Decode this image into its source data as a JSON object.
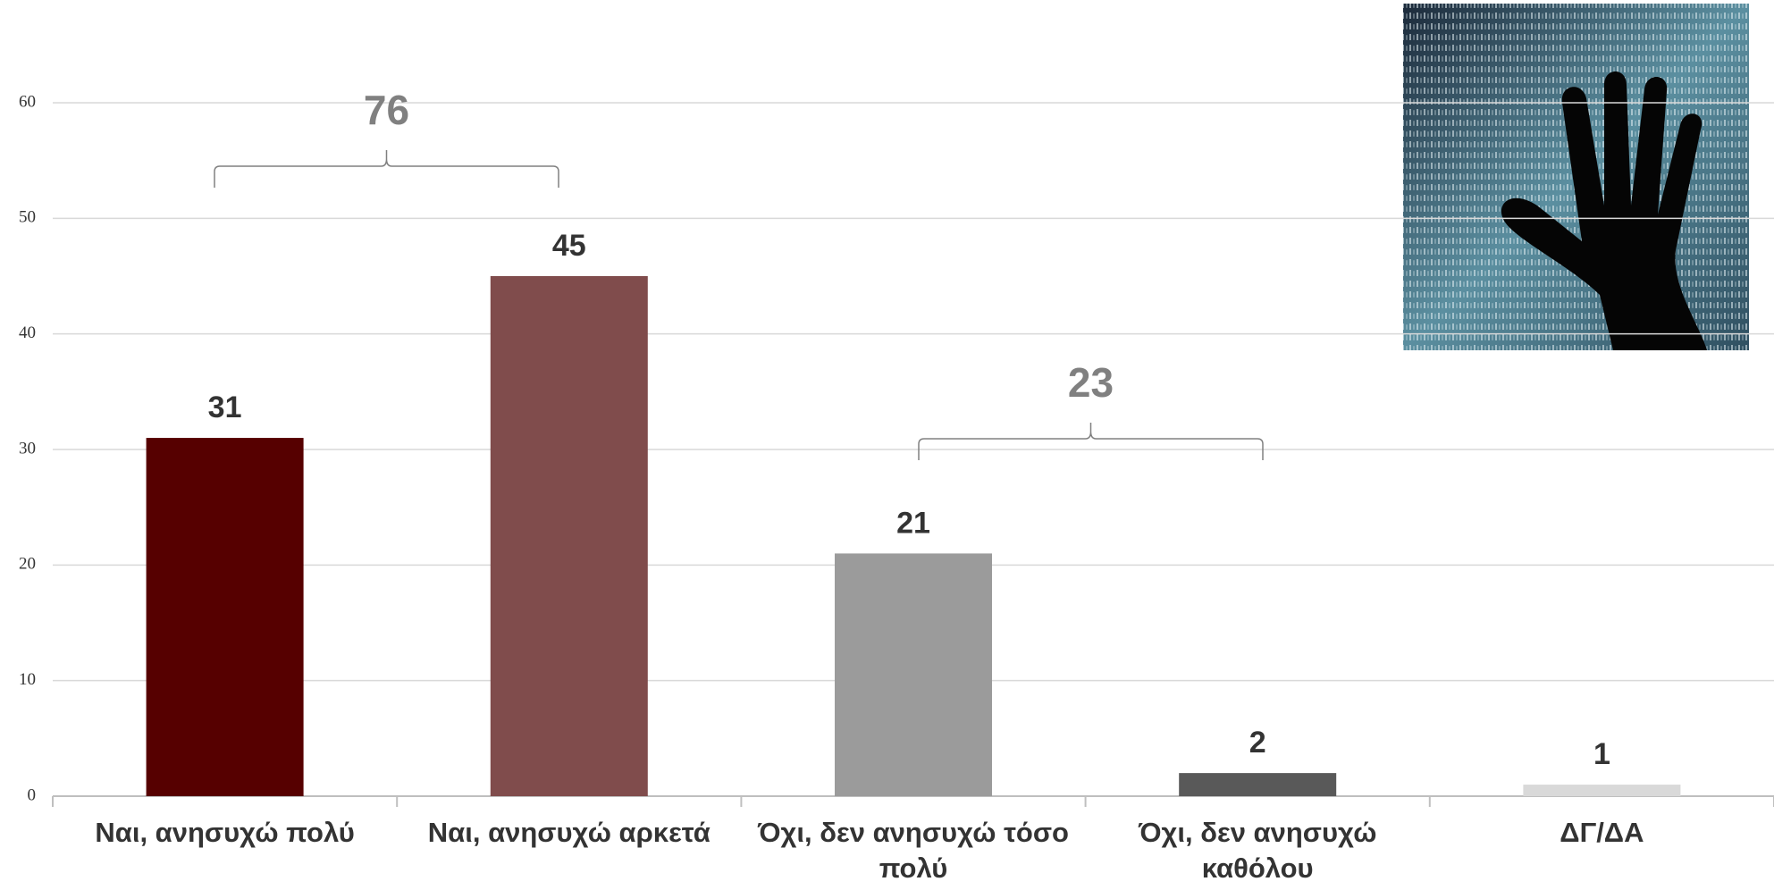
{
  "chart_data": {
    "type": "bar",
    "categories": [
      "Ναι, ανησυχώ πολύ",
      "Ναι, ανησυχώ αρκετά",
      "Όχι, δεν ανησυχώ τόσο πολύ",
      "Όχι, δεν ανησυχώ καθόλου",
      "ΔΓ/ΔΑ"
    ],
    "values": [
      31,
      45,
      21,
      2,
      1
    ],
    "colors": [
      "#560000",
      "#804c4c",
      "#9b9b9b",
      "#595959",
      "#d9d9d9"
    ],
    "ylim": [
      0,
      60
    ],
    "yticks": [
      0,
      10,
      20,
      30,
      40,
      50,
      60
    ],
    "grid": true,
    "brackets": [
      {
        "value": 76
      },
      {
        "value": 23
      }
    ]
  }
}
